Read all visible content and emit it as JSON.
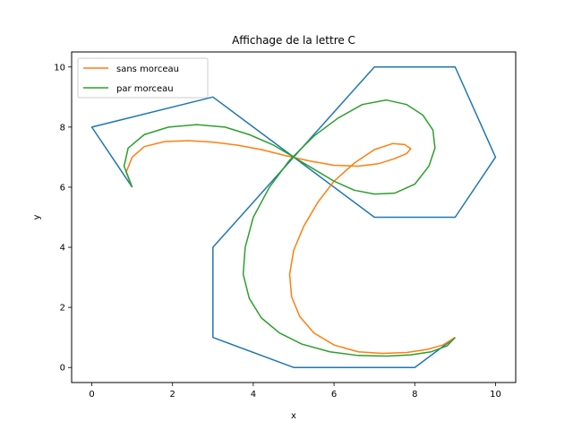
{
  "chart_data": {
    "type": "line",
    "title": "Affichage de la lettre C",
    "xlabel": "x",
    "ylabel": "y",
    "xlim": [
      -0.5,
      10.5
    ],
    "ylim": [
      -0.5,
      10.5
    ],
    "xticks": [
      0,
      2,
      4,
      6,
      8,
      10
    ],
    "yticks": [
      0,
      2,
      4,
      6,
      8,
      10
    ],
    "grid": false,
    "legend_position": "upper-left",
    "series": [
      {
        "name": "",
        "color": "#1f77b4",
        "x": [
          1,
          0,
          3,
          5,
          7,
          9,
          10,
          9,
          7,
          5,
          3,
          3,
          5,
          8,
          9
        ],
        "y": [
          6,
          8,
          9,
          7,
          10,
          10,
          7,
          5,
          5,
          7,
          4,
          1,
          0,
          0,
          1
        ]
      },
      {
        "name": "sans morceau",
        "color": "#ff7f0e",
        "x": [
          1.0,
          0.85,
          1.0,
          1.3,
          1.8,
          2.4,
          3.0,
          3.6,
          4.2,
          4.8,
          5.4,
          6.0,
          6.6,
          7.1,
          7.5,
          7.8,
          7.9,
          7.75,
          7.45,
          7.0,
          6.5,
          6.0,
          5.6,
          5.25,
          5.0,
          4.9,
          4.95,
          5.15,
          5.5,
          6.0,
          6.6,
          7.2,
          7.8,
          8.3,
          8.7,
          9.0
        ],
        "y": [
          6.0,
          6.5,
          7.0,
          7.35,
          7.52,
          7.55,
          7.5,
          7.4,
          7.25,
          7.05,
          6.87,
          6.73,
          6.7,
          6.78,
          6.95,
          7.12,
          7.28,
          7.42,
          7.45,
          7.25,
          6.8,
          6.2,
          5.5,
          4.7,
          3.9,
          3.1,
          2.35,
          1.7,
          1.15,
          0.75,
          0.52,
          0.47,
          0.5,
          0.6,
          0.75,
          1.0
        ]
      },
      {
        "name": "par morceau",
        "color": "#2ca02c",
        "x": [
          1.0,
          0.8,
          0.9,
          1.3,
          1.9,
          2.6,
          3.3,
          3.9,
          4.5,
          5.0,
          5.5,
          6.0,
          6.5,
          7.0,
          7.5,
          8.0,
          8.35,
          8.5,
          8.45,
          8.2,
          7.8,
          7.3,
          6.7,
          6.1,
          5.5,
          4.9,
          4.4,
          4.0,
          3.8,
          3.75,
          3.9,
          4.2,
          4.65,
          5.2,
          5.9,
          6.6,
          7.3,
          7.9,
          8.4,
          8.8,
          9.0
        ],
        "y": [
          6.0,
          6.7,
          7.3,
          7.75,
          8.0,
          8.08,
          8.0,
          7.75,
          7.4,
          7.0,
          6.6,
          6.2,
          5.9,
          5.77,
          5.8,
          6.1,
          6.7,
          7.3,
          7.9,
          8.4,
          8.75,
          8.9,
          8.75,
          8.3,
          7.7,
          6.9,
          6.0,
          5.0,
          4.0,
          3.1,
          2.3,
          1.65,
          1.15,
          0.78,
          0.52,
          0.4,
          0.38,
          0.42,
          0.52,
          0.72,
          1.0
        ]
      }
    ]
  }
}
